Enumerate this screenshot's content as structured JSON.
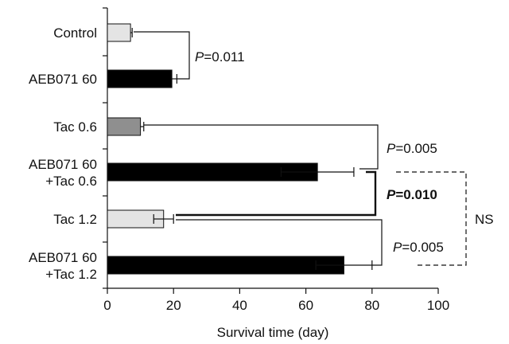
{
  "chart_data": {
    "type": "bar",
    "orientation": "horizontal",
    "title": "",
    "xlabel": "Survival time (day)",
    "ylabel": "",
    "xlim": [
      0,
      100
    ],
    "xticks": [
      "0",
      "20",
      "40",
      "60",
      "80",
      "100"
    ],
    "categories": [
      [
        "Control"
      ],
      [
        "AEB071 60"
      ],
      [
        "Tac 0.6"
      ],
      [
        "AEB071 60",
        "+Tac 0.6"
      ],
      [
        "Tac 1.2"
      ],
      [
        "AEB071 60",
        "+Tac 1.2"
      ]
    ],
    "values": [
      7,
      19.5,
      10,
      63.5,
      17,
      71.5
    ],
    "errors": [
      0.5,
      1.5,
      1,
      11,
      3,
      8.5
    ],
    "colors": [
      "#e4e4e4",
      "#000000",
      "#8f8f8f",
      "#000000",
      "#e4e4e4",
      "#000000"
    ],
    "annotations": [
      {
        "p_prefix": "P",
        "p_value": "=0.011",
        "bold": false
      },
      {
        "p_prefix": "P",
        "p_value": "=0.005",
        "bold": false
      },
      {
        "p_prefix": "P",
        "p_value": "=0.010",
        "bold": true
      },
      {
        "p_prefix": "P",
        "p_value": "=0.005",
        "bold": false
      },
      {
        "text": "NS"
      }
    ]
  }
}
